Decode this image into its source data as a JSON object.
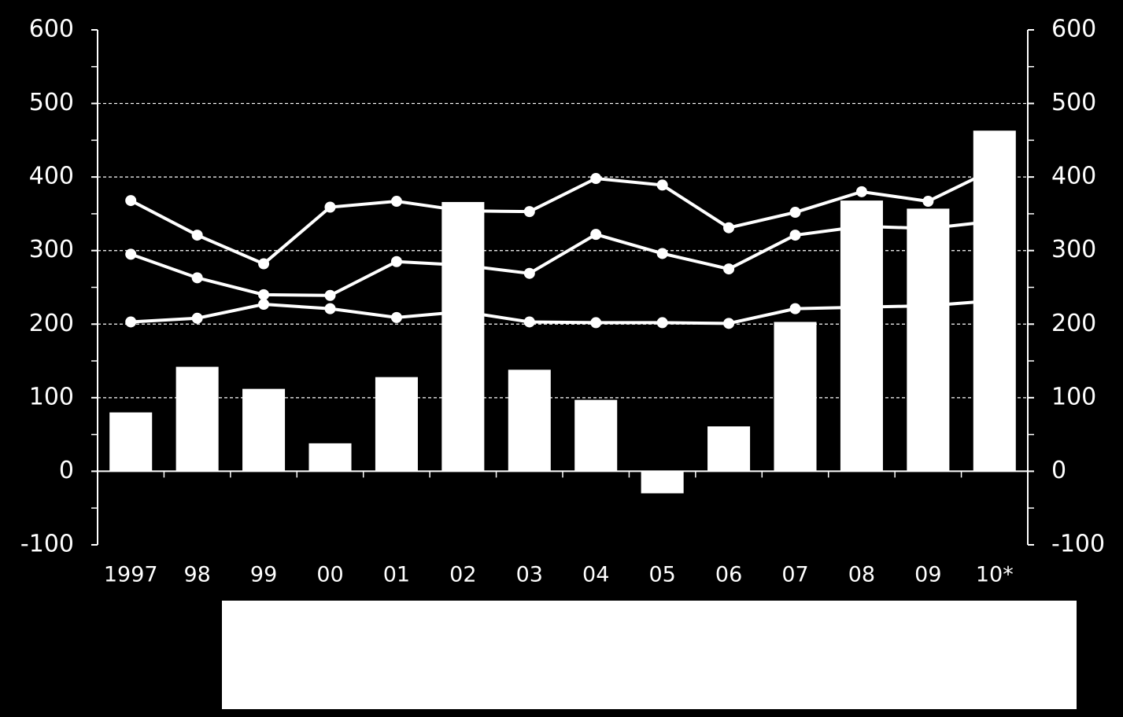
{
  "chart_data": {
    "type": "bar-line",
    "categories": [
      "1997",
      "98",
      "99",
      "00",
      "01",
      "02",
      "03",
      "04",
      "05",
      "06",
      "07",
      "08",
      "09",
      "10*"
    ],
    "bars": {
      "color": "#ffffff",
      "values": [
        80,
        142,
        112,
        38,
        128,
        366,
        138,
        97,
        -30,
        61,
        203,
        368,
        357,
        463
      ]
    },
    "series": [
      {
        "color": "#ffffff",
        "values": [
          368,
          321,
          282,
          359,
          367,
          354,
          353,
          398,
          389,
          331,
          352,
          380,
          367,
          411
        ]
      },
      {
        "color": "#ffffff",
        "values": [
          295,
          263,
          240,
          239,
          285,
          280,
          269,
          322,
          296,
          275,
          321,
          333,
          330,
          340
        ]
      },
      {
        "color": "#ffffff",
        "values": [
          203,
          208,
          227,
          221,
          209,
          217,
          203,
          202,
          202,
          201,
          221,
          223,
          225,
          232
        ]
      }
    ],
    "ylim": [
      -100,
      600
    ],
    "yticks": [
      -100,
      0,
      100,
      200,
      300,
      400,
      500,
      600
    ],
    "y2lim": [
      -100,
      600
    ],
    "y2ticks": [
      -100,
      0,
      100,
      200,
      300,
      400,
      500,
      600
    ],
    "grid": true
  }
}
